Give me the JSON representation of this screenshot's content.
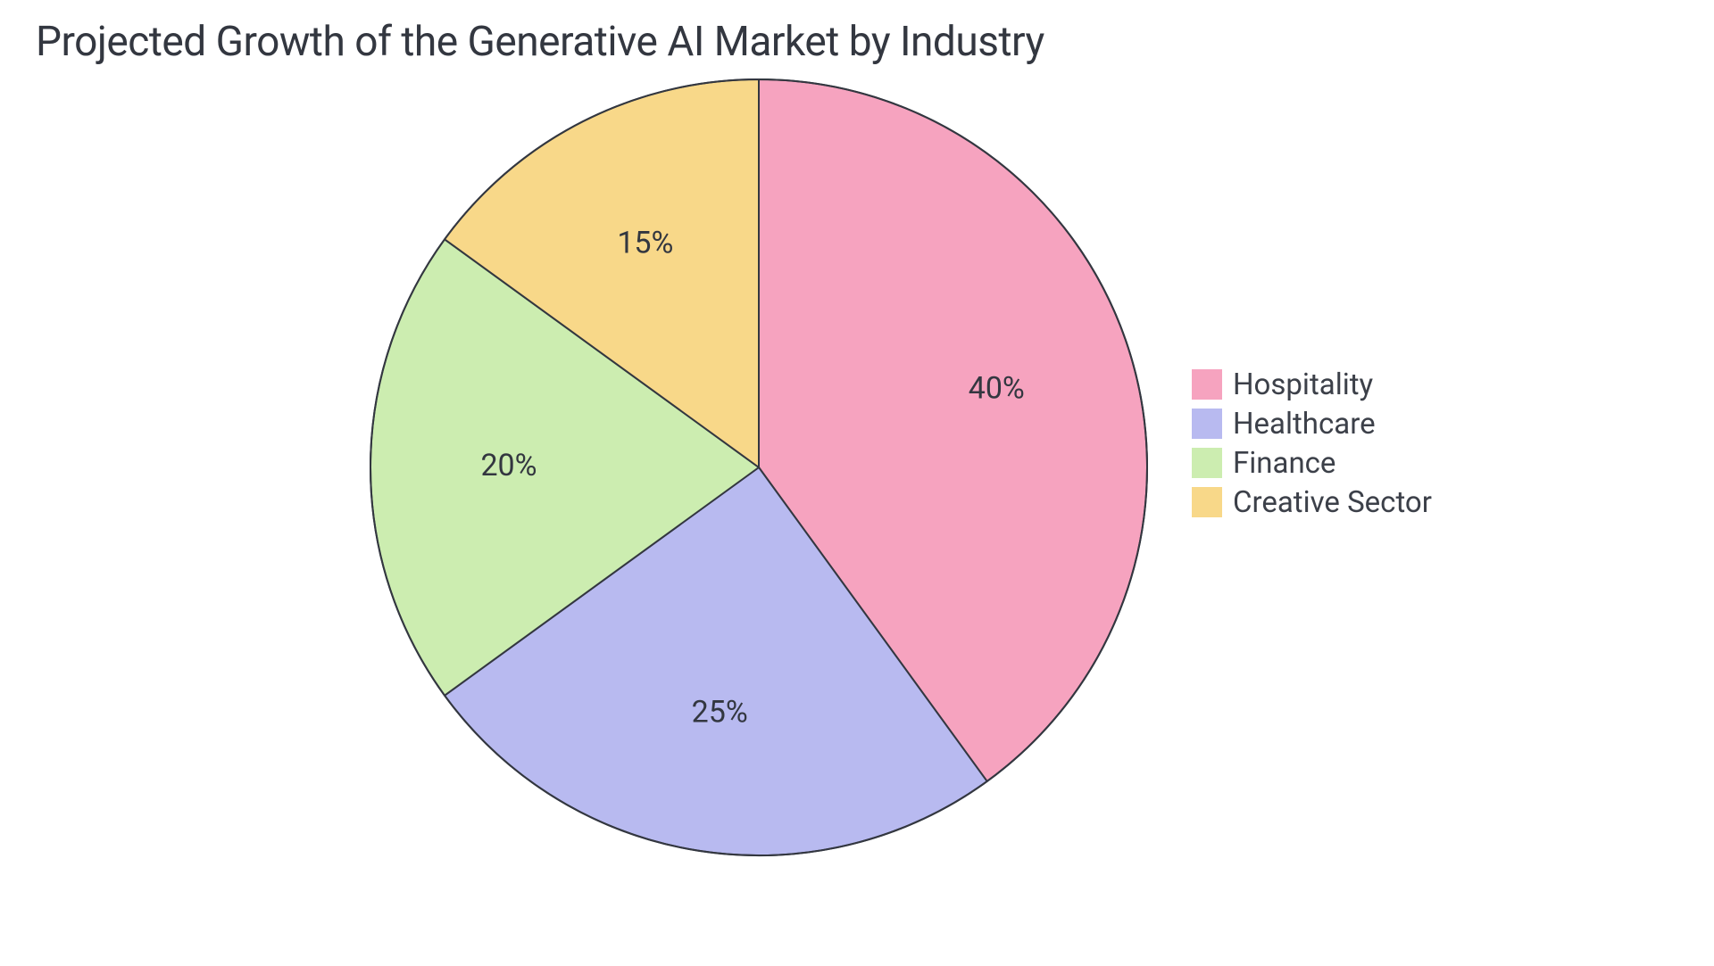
{
  "chart": {
    "type": "pie",
    "title": "Projected Growth of the Generative AI Market by Industry",
    "title_fontsize": 46,
    "title_color": "#333740",
    "background_color": "#ffffff",
    "stroke_color": "#333740",
    "stroke_width": 2,
    "label_fontsize": 34,
    "label_color": "#333740",
    "legend_fontsize": 33,
    "legend_color": "#3c4049",
    "legend_swatch_size": 34,
    "start_angle_deg": -90,
    "radius": 435,
    "label_radius": 280,
    "slices": [
      {
        "label": "Hospitality",
        "value": 40,
        "display": "40%",
        "color": "#f6a3bf"
      },
      {
        "label": "Healthcare",
        "value": 25,
        "display": "25%",
        "color": "#b8baf0"
      },
      {
        "label": "Finance",
        "value": 20,
        "display": "20%",
        "color": "#ccedb0"
      },
      {
        "label": "Creative Sector",
        "value": 15,
        "display": "15%",
        "color": "#f8d889"
      }
    ]
  }
}
